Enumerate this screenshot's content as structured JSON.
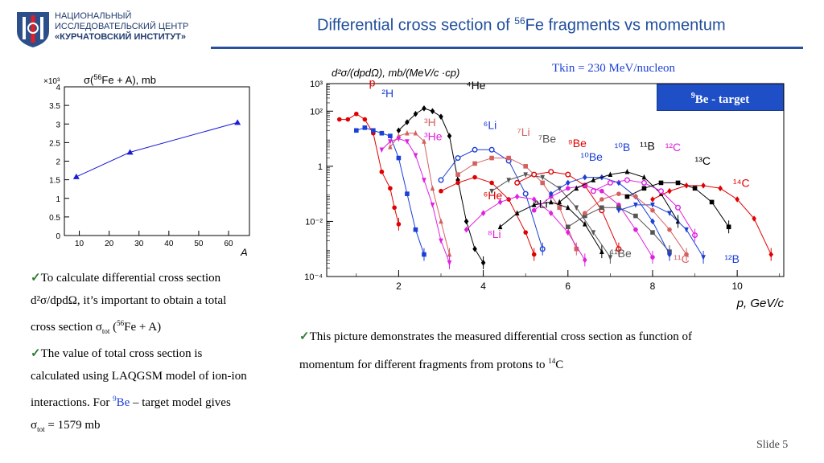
{
  "header": {
    "logo_line1": "НАЦИОНАЛЬНЫЙ",
    "logo_line2": "ИССЛЕДОВАТЕЛЬСКИЙ ЦЕНТР",
    "logo_line3": "«КУРЧАТОВСКИЙ ИНСТИТУТ»",
    "title_prefix": "Differential cross section of ",
    "title_sup": "56",
    "title_suffix": "Fe fragments vs momentum"
  },
  "energy_label": "Tkin = 230 MeV/nucleon",
  "target_label_sup": "9",
  "target_label": "Be - target",
  "left_chart": {
    "ylabel_main": "σ(",
    "ylabel_sup": "56",
    "ylabel_rest": "Fe + A), mb",
    "xlabel": "A",
    "multiplier": "×10³"
  },
  "chart_data": [
    {
      "type": "line",
      "x": [
        9,
        27,
        63
      ],
      "y": [
        1.58,
        2.24,
        3.04
      ],
      "y_unit_multiplier": 1000,
      "xlim": [
        5,
        67
      ],
      "ylim": [
        0,
        4
      ],
      "xticks": [
        "10",
        "20",
        "30",
        "40",
        "50",
        "60"
      ],
      "yticks": [
        "0",
        "0.5",
        "1",
        "1.5",
        "2",
        "2.5",
        "3",
        "3.5",
        "4"
      ],
      "xlabel": "A",
      "ylabel": "σ(56Fe + A), mb",
      "color": "#1c1cd6"
    },
    {
      "type": "scatter",
      "ylabel": "d²σ/(dpdΩ), mb/(MeV/c ·cp)",
      "xlabel": "p, GeV/c",
      "xlim": [
        0.3,
        11.1
      ],
      "ylim_log10": [
        -4,
        3
      ],
      "log_y": true,
      "xticks": [
        "2",
        "4",
        "6",
        "8",
        "10"
      ],
      "yticks": [
        "10⁻⁴",
        "10⁻²",
        "1",
        "10²",
        "10³"
      ],
      "series": [
        {
          "name": "p",
          "color": "#e00000",
          "x": [
            0.6,
            0.8,
            1.0,
            1.2,
            1.4,
            1.6,
            1.8,
            1.9,
            2.0
          ],
          "y": [
            1.7,
            1.7,
            1.9,
            1.7,
            1.2,
            -0.2,
            -0.8,
            -1.5,
            -2.1
          ]
        },
        {
          "name": "2H",
          "color": "#1c3fd6",
          "x": [
            1.0,
            1.2,
            1.4,
            1.6,
            1.8,
            2.0,
            2.2,
            2.4,
            2.6
          ],
          "y": [
            1.3,
            1.4,
            1.3,
            1.2,
            1.1,
            0.3,
            -1.0,
            -2.3,
            -3.2
          ]
        },
        {
          "name": "4He",
          "color": "#000000",
          "x": [
            2.0,
            2.2,
            2.4,
            2.6,
            2.8,
            3.0,
            3.2,
            3.4,
            3.6,
            3.8,
            4.0
          ],
          "y": [
            1.3,
            1.6,
            1.9,
            2.1,
            2.0,
            1.8,
            1.1,
            -0.5,
            -2.0,
            -3.0,
            -3.5
          ]
        },
        {
          "name": "3H",
          "color": "#d46060",
          "x": [
            1.8,
            2.0,
            2.2,
            2.4,
            2.6,
            2.8,
            3.0,
            3.2
          ],
          "y": [
            0.7,
            1.1,
            1.2,
            1.2,
            0.9,
            -0.8,
            -2.0,
            -3.2
          ]
        },
        {
          "name": "3He",
          "color": "#e020e0",
          "x": [
            1.6,
            1.8,
            2.0,
            2.2,
            2.4,
            2.6,
            2.8,
            3.0,
            3.2
          ],
          "y": [
            0.6,
            0.9,
            1.0,
            0.9,
            0.4,
            -0.5,
            -1.4,
            -2.7,
            -3.5
          ]
        },
        {
          "name": "6Li",
          "color": "#1c3fd6",
          "x": [
            3.0,
            3.4,
            3.8,
            4.2,
            4.6,
            5.0,
            5.4
          ],
          "y": [
            -0.5,
            0.3,
            0.6,
            0.6,
            0.2,
            -1.0,
            -3.0
          ]
        },
        {
          "name": "6He",
          "color": "#e00000",
          "x": [
            3.0,
            3.4,
            3.8,
            4.2,
            4.6,
            5.0,
            5.2
          ],
          "y": [
            -0.9,
            -0.6,
            -0.4,
            -0.6,
            -1.2,
            -2.4,
            -3.2
          ]
        },
        {
          "name": "7Li",
          "color": "#d46060",
          "x": [
            3.4,
            3.8,
            4.2,
            4.6,
            5.0,
            5.4,
            5.8,
            6.2
          ],
          "y": [
            -0.3,
            0.1,
            0.3,
            0.3,
            0.0,
            -0.6,
            -1.5,
            -3.0
          ]
        },
        {
          "name": "8Li",
          "color": "#e020e0",
          "x": [
            3.6,
            4.0,
            4.4,
            4.8,
            5.2,
            5.6,
            6.0,
            6.4
          ],
          "y": [
            -2.3,
            -1.7,
            -1.3,
            -1.1,
            -1.2,
            -1.7,
            -2.4,
            -3.4
          ]
        },
        {
          "name": "9Li",
          "color": "#000000",
          "x": [
            4.4,
            4.8,
            5.2,
            5.6,
            6.0,
            6.4,
            6.8
          ],
          "y": [
            -2.2,
            -1.7,
            -1.4,
            -1.3,
            -1.5,
            -2.1,
            -3.1
          ]
        },
        {
          "name": "7Be",
          "color": "#555555",
          "x": [
            4.2,
            4.6,
            5.0,
            5.4,
            5.8,
            6.2,
            6.6,
            7.0
          ],
          "y": [
            -0.9,
            -0.5,
            -0.3,
            -0.4,
            -0.8,
            -1.5,
            -2.4,
            -3.3
          ]
        },
        {
          "name": "9Be",
          "color": "#e00000",
          "x": [
            4.8,
            5.2,
            5.6,
            6.0,
            6.4,
            6.8,
            7.2
          ],
          "y": [
            -0.6,
            -0.3,
            -0.2,
            -0.3,
            -0.7,
            -1.6,
            -3.0
          ]
        },
        {
          "name": "10Be",
          "color": "#e020e0",
          "x": [
            5.2,
            5.6,
            6.0,
            6.4,
            6.8,
            7.2,
            7.6,
            8.0
          ],
          "y": [
            -1.6,
            -1.1,
            -0.8,
            -0.7,
            -0.9,
            -1.4,
            -2.3,
            -3.3
          ]
        },
        {
          "name": "11Be",
          "color": "#555555",
          "x": [
            6.0,
            6.4,
            6.8,
            7.2,
            7.6,
            8.0,
            8.4
          ],
          "y": [
            -2.2,
            -1.8,
            -1.5,
            -1.5,
            -1.8,
            -2.4,
            -3.1
          ]
        },
        {
          "name": "10B",
          "color": "#1c3fd6",
          "x": [
            5.6,
            6.0,
            6.4,
            6.8,
            7.2,
            7.6,
            8.0,
            8.4
          ],
          "y": [
            -1.0,
            -0.6,
            -0.4,
            -0.4,
            -0.6,
            -1.1,
            -2.0,
            -3.2
          ]
        },
        {
          "name": "11B",
          "color": "#000000",
          "x": [
            5.8,
            6.2,
            6.6,
            7.0,
            7.4,
            7.8,
            8.2,
            8.6
          ],
          "y": [
            -1.3,
            -0.8,
            -0.5,
            -0.3,
            -0.2,
            -0.4,
            -1.0,
            -2.0
          ]
        },
        {
          "name": "12B",
          "color": "#1c3fd6",
          "x": [
            7.2,
            7.6,
            8.0,
            8.4,
            8.8,
            9.2
          ],
          "y": [
            -1.6,
            -1.4,
            -1.4,
            -1.7,
            -2.3,
            -3.3
          ]
        },
        {
          "name": "12C",
          "color": "#e020e0",
          "x": [
            6.6,
            7.0,
            7.4,
            7.8,
            8.2,
            8.6,
            9.0
          ],
          "y": [
            -0.9,
            -0.6,
            -0.5,
            -0.6,
            -0.9,
            -1.5,
            -2.5
          ]
        },
        {
          "name": "11C",
          "color": "#d46060",
          "x": [
            6.4,
            6.8,
            7.2,
            7.6,
            8.0,
            8.4,
            8.8
          ],
          "y": [
            -1.7,
            -1.2,
            -1.0,
            -1.1,
            -1.6,
            -2.3,
            -3.2
          ]
        },
        {
          "name": "13C",
          "color": "#000000",
          "x": [
            7.4,
            7.8,
            8.2,
            8.6,
            9.0,
            9.4,
            9.8
          ],
          "y": [
            -1.1,
            -0.8,
            -0.6,
            -0.6,
            -0.8,
            -1.3,
            -2.2
          ]
        },
        {
          "name": "14C",
          "color": "#e00000",
          "x": [
            8.0,
            8.4,
            8.8,
            9.2,
            9.6,
            10.0,
            10.4,
            10.8
          ],
          "y": [
            -1.2,
            -0.9,
            -0.7,
            -0.7,
            -0.8,
            -1.2,
            -1.9,
            -3.2
          ]
        }
      ],
      "labels": [
        {
          "text": "p",
          "x": 1.3,
          "y": 2.9,
          "color": "#e00000"
        },
        {
          "text": "²H",
          "x": 1.6,
          "y": 2.5,
          "color": "#1c3fd6"
        },
        {
          "text": "⁴He",
          "x": 3.6,
          "y": 2.8,
          "color": "#000000"
        },
        {
          "text": "³H",
          "x": 2.6,
          "y": 1.45,
          "color": "#d46060"
        },
        {
          "text": "³He",
          "x": 2.6,
          "y": 0.95,
          "color": "#e020e0"
        },
        {
          "text": "⁶Li",
          "x": 4.0,
          "y": 1.35,
          "color": "#1c3fd6"
        },
        {
          "text": "⁷Li",
          "x": 4.8,
          "y": 1.1,
          "color": "#d46060"
        },
        {
          "text": "⁷Be",
          "x": 5.3,
          "y": 0.85,
          "color": "#555555"
        },
        {
          "text": "⁹Be",
          "x": 6.0,
          "y": 0.7,
          "color": "#e00000"
        },
        {
          "text": "¹⁰Be",
          "x": 6.3,
          "y": 0.2,
          "color": "#1c3fd6"
        },
        {
          "text": "¹⁰B",
          "x": 7.1,
          "y": 0.55,
          "color": "#1c3fd6"
        },
        {
          "text": "¹¹B",
          "x": 7.7,
          "y": 0.6,
          "color": "#000000"
        },
        {
          "text": "¹²C",
          "x": 8.3,
          "y": 0.55,
          "color": "#e020e0"
        },
        {
          "text": "¹³C",
          "x": 9.0,
          "y": 0.05,
          "color": "#000000"
        },
        {
          "text": "¹⁴C",
          "x": 9.9,
          "y": -0.75,
          "color": "#e00000"
        },
        {
          "text": "⁶He",
          "x": 4.0,
          "y": -1.2,
          "color": "#e00000"
        },
        {
          "text": "⁹Li",
          "x": 5.2,
          "y": -1.5,
          "color": "#000000"
        },
        {
          "text": "⁸Li",
          "x": 4.1,
          "y": -2.6,
          "color": "#e020e0"
        },
        {
          "text": "¹¹Be",
          "x": 7.0,
          "y": -3.3,
          "color": "#555555"
        },
        {
          "text": "¹¹C",
          "x": 8.5,
          "y": -3.5,
          "color": "#d46060"
        },
        {
          "text": "¹²B",
          "x": 9.7,
          "y": -3.5,
          "color": "#1c3fd6"
        }
      ]
    }
  ],
  "left_text": {
    "p1_a": "To calculate differential cross section",
    "p1_b": "d²σ/dpdΩ, it’s important to obtain a total",
    "p1_c_pre": "cross section σ",
    "p1_c_sub": "tot",
    "p1_c_mid": " (",
    "p1_c_sup": "56",
    "p1_c_post": "Fe + A)",
    "p2_a": "The value of total cross section is",
    "p2_b": "calculated using LAQGSM model of ion-ion",
    "p2_c_pre": "interactions. For ",
    "p2_c_sup": "9",
    "p2_c_be": "Be",
    "p2_c_post": " – target model gives",
    "p2_d_pre": "σ",
    "p2_d_sub": "tot",
    "p2_d_post": " = 1579 mb"
  },
  "right_text": {
    "line1": "This picture demonstrates the measured differential cross section as function of",
    "line2_pre": "momentum for different fragments from protons to ",
    "line2_sup": "14",
    "line2_post": "C"
  },
  "footer": {
    "slide": "Slide 5"
  },
  "check_glyph": "✓"
}
